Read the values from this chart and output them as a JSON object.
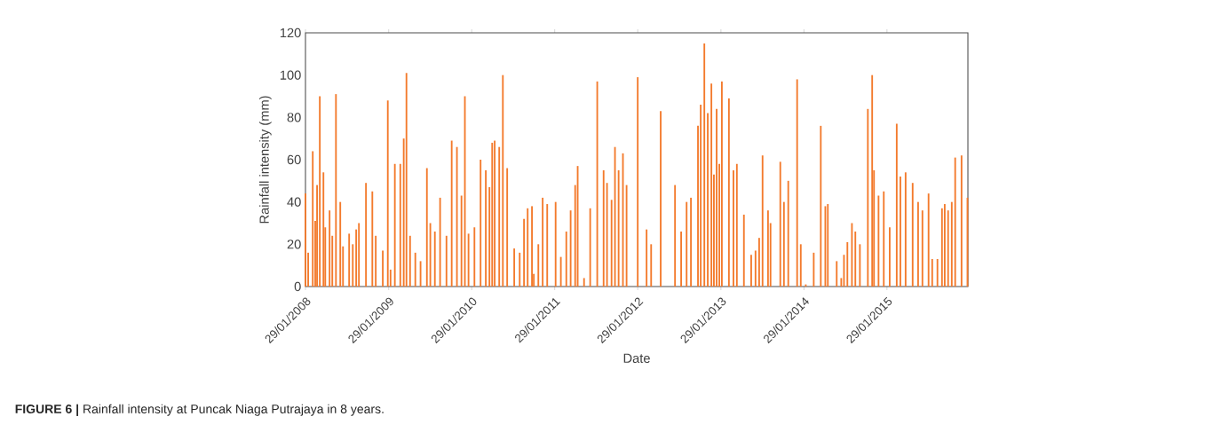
{
  "chart_data": {
    "type": "bar",
    "xlabel": "Date",
    "ylabel": "Rainfall intensity (mm)",
    "annotations": [
      "**FIGURE 6 |** Rainfall intensity at Puncak Niaga Putrajaya in 8 years."
    ],
    "color": "#f37a2c",
    "x": [
      "2008-01-29",
      "2008-02-10",
      "2008-03-01",
      "2008-03-12",
      "2008-03-20",
      "2008-04-01",
      "2008-04-17",
      "2008-04-25",
      "2008-05-14",
      "2008-05-26",
      "2008-06-11",
      "2008-06-30",
      "2008-07-12",
      "2008-08-08",
      "2008-08-24",
      "2008-09-08",
      "2008-09-20",
      "2008-10-21",
      "2008-11-18",
      "2008-12-03",
      "2009-01-03",
      "2009-01-25",
      "2009-02-06",
      "2009-02-25",
      "2009-03-21",
      "2009-04-05",
      "2009-04-17",
      "2009-05-03",
      "2009-05-26",
      "2009-06-18",
      "2009-07-16",
      "2009-07-31",
      "2009-08-20",
      "2009-09-12",
      "2009-10-10",
      "2009-11-02",
      "2009-11-25",
      "2009-12-15",
      "2009-12-30",
      "2010-01-15",
      "2010-02-10",
      "2010-03-09",
      "2010-04-01",
      "2010-04-17",
      "2010-04-29",
      "2010-05-10",
      "2010-05-30",
      "2010-06-15",
      "2010-07-04",
      "2010-08-04",
      "2010-08-28",
      "2010-09-16",
      "2010-10-02",
      "2010-10-21",
      "2010-10-29",
      "2010-11-18",
      "2010-12-07",
      "2010-12-27",
      "2011-02-02",
      "2011-02-25",
      "2011-03-21",
      "2011-04-09",
      "2011-04-29",
      "2011-05-10",
      "2011-06-07",
      "2011-07-04",
      "2011-08-04",
      "2011-09-01",
      "2011-09-16",
      "2011-10-06",
      "2011-10-21",
      "2011-11-06",
      "2011-11-25",
      "2011-12-11",
      "2012-01-29",
      "2012-03-08",
      "2012-03-28",
      "2012-05-09",
      "2012-07-11",
      "2012-08-07",
      "2012-08-31",
      "2012-09-19",
      "2012-10-20",
      "2012-11-01",
      "2012-11-17",
      "2012-12-02",
      "2012-12-18",
      "2012-12-29",
      "2013-01-10",
      "2013-01-22",
      "2013-02-02",
      "2013-03-05",
      "2013-03-25",
      "2013-04-09",
      "2013-05-10",
      "2013-06-11",
      "2013-06-30",
      "2013-07-16",
      "2013-07-31",
      "2013-08-24",
      "2013-09-04",
      "2013-10-17",
      "2013-11-02",
      "2013-11-21",
      "2013-12-30",
      "2014-01-15",
      "2014-02-06",
      "2014-03-13",
      "2014-04-13",
      "2014-05-03",
      "2014-05-14",
      "2014-06-22",
      "2014-07-12",
      "2014-07-24",
      "2014-08-08",
      "2014-08-28",
      "2014-09-12",
      "2014-10-02",
      "2014-11-06",
      "2014-11-25",
      "2014-12-03",
      "2014-12-23",
      "2015-01-15",
      "2015-02-10",
      "2015-03-13",
      "2015-03-29",
      "2015-04-21",
      "2015-05-22",
      "2015-06-15",
      "2015-07-04",
      "2015-07-31",
      "2015-08-16",
      "2015-09-08",
      "2015-09-28",
      "2015-10-10",
      "2015-10-25",
      "2015-11-10",
      "2015-11-25",
      "2015-12-23",
      "2016-01-18"
    ],
    "values": [
      44,
      16,
      64,
      31,
      48,
      90,
      54,
      28,
      36,
      24,
      91,
      40,
      19,
      25,
      20,
      27,
      30,
      49,
      45,
      24,
      17,
      88,
      8,
      58,
      58,
      70,
      101,
      24,
      16,
      12,
      56,
      30,
      26,
      42,
      24,
      69,
      66,
      43,
      90,
      25,
      28,
      60,
      55,
      47,
      68,
      69,
      66,
      100,
      56,
      18,
      16,
      32,
      37,
      38,
      6,
      20,
      42,
      39,
      40,
      14,
      26,
      36,
      48,
      57,
      4,
      37,
      97,
      55,
      49,
      41,
      66,
      55,
      63,
      48,
      99,
      27,
      20,
      83,
      48,
      26,
      40,
      42,
      76,
      86,
      115,
      82,
      96,
      53,
      84,
      58,
      97,
      89,
      55,
      58,
      34,
      15,
      17,
      23,
      62,
      36,
      30,
      59,
      40,
      50,
      98,
      20,
      1,
      16,
      76,
      38,
      39,
      12,
      4,
      15,
      21,
      30,
      26,
      20,
      84,
      100,
      55,
      43,
      45,
      28,
      77,
      52,
      54,
      49,
      40,
      36,
      44,
      13,
      13,
      37,
      39,
      36,
      40,
      61,
      62,
      42
    ],
    "xlim": [
      "2008-01-29",
      "2016-01-20"
    ],
    "xticks": [
      {
        "value": "2008-01-29",
        "label": "29/01/2008"
      },
      {
        "value": "2009-01-29",
        "label": "29/01/2009"
      },
      {
        "value": "2010-01-29",
        "label": "29/01/2010"
      },
      {
        "value": "2011-01-29",
        "label": "29/01/2011"
      },
      {
        "value": "2012-01-29",
        "label": "29/01/2012"
      },
      {
        "value": "2013-01-29",
        "label": "29/01/2013"
      },
      {
        "value": "2014-01-29",
        "label": "29/01/2014"
      },
      {
        "value": "2015-01-29",
        "label": "29/01/2015"
      }
    ],
    "ylim": [
      0,
      120
    ],
    "yticks": [
      0,
      20,
      40,
      60,
      80,
      100,
      120
    ]
  }
}
